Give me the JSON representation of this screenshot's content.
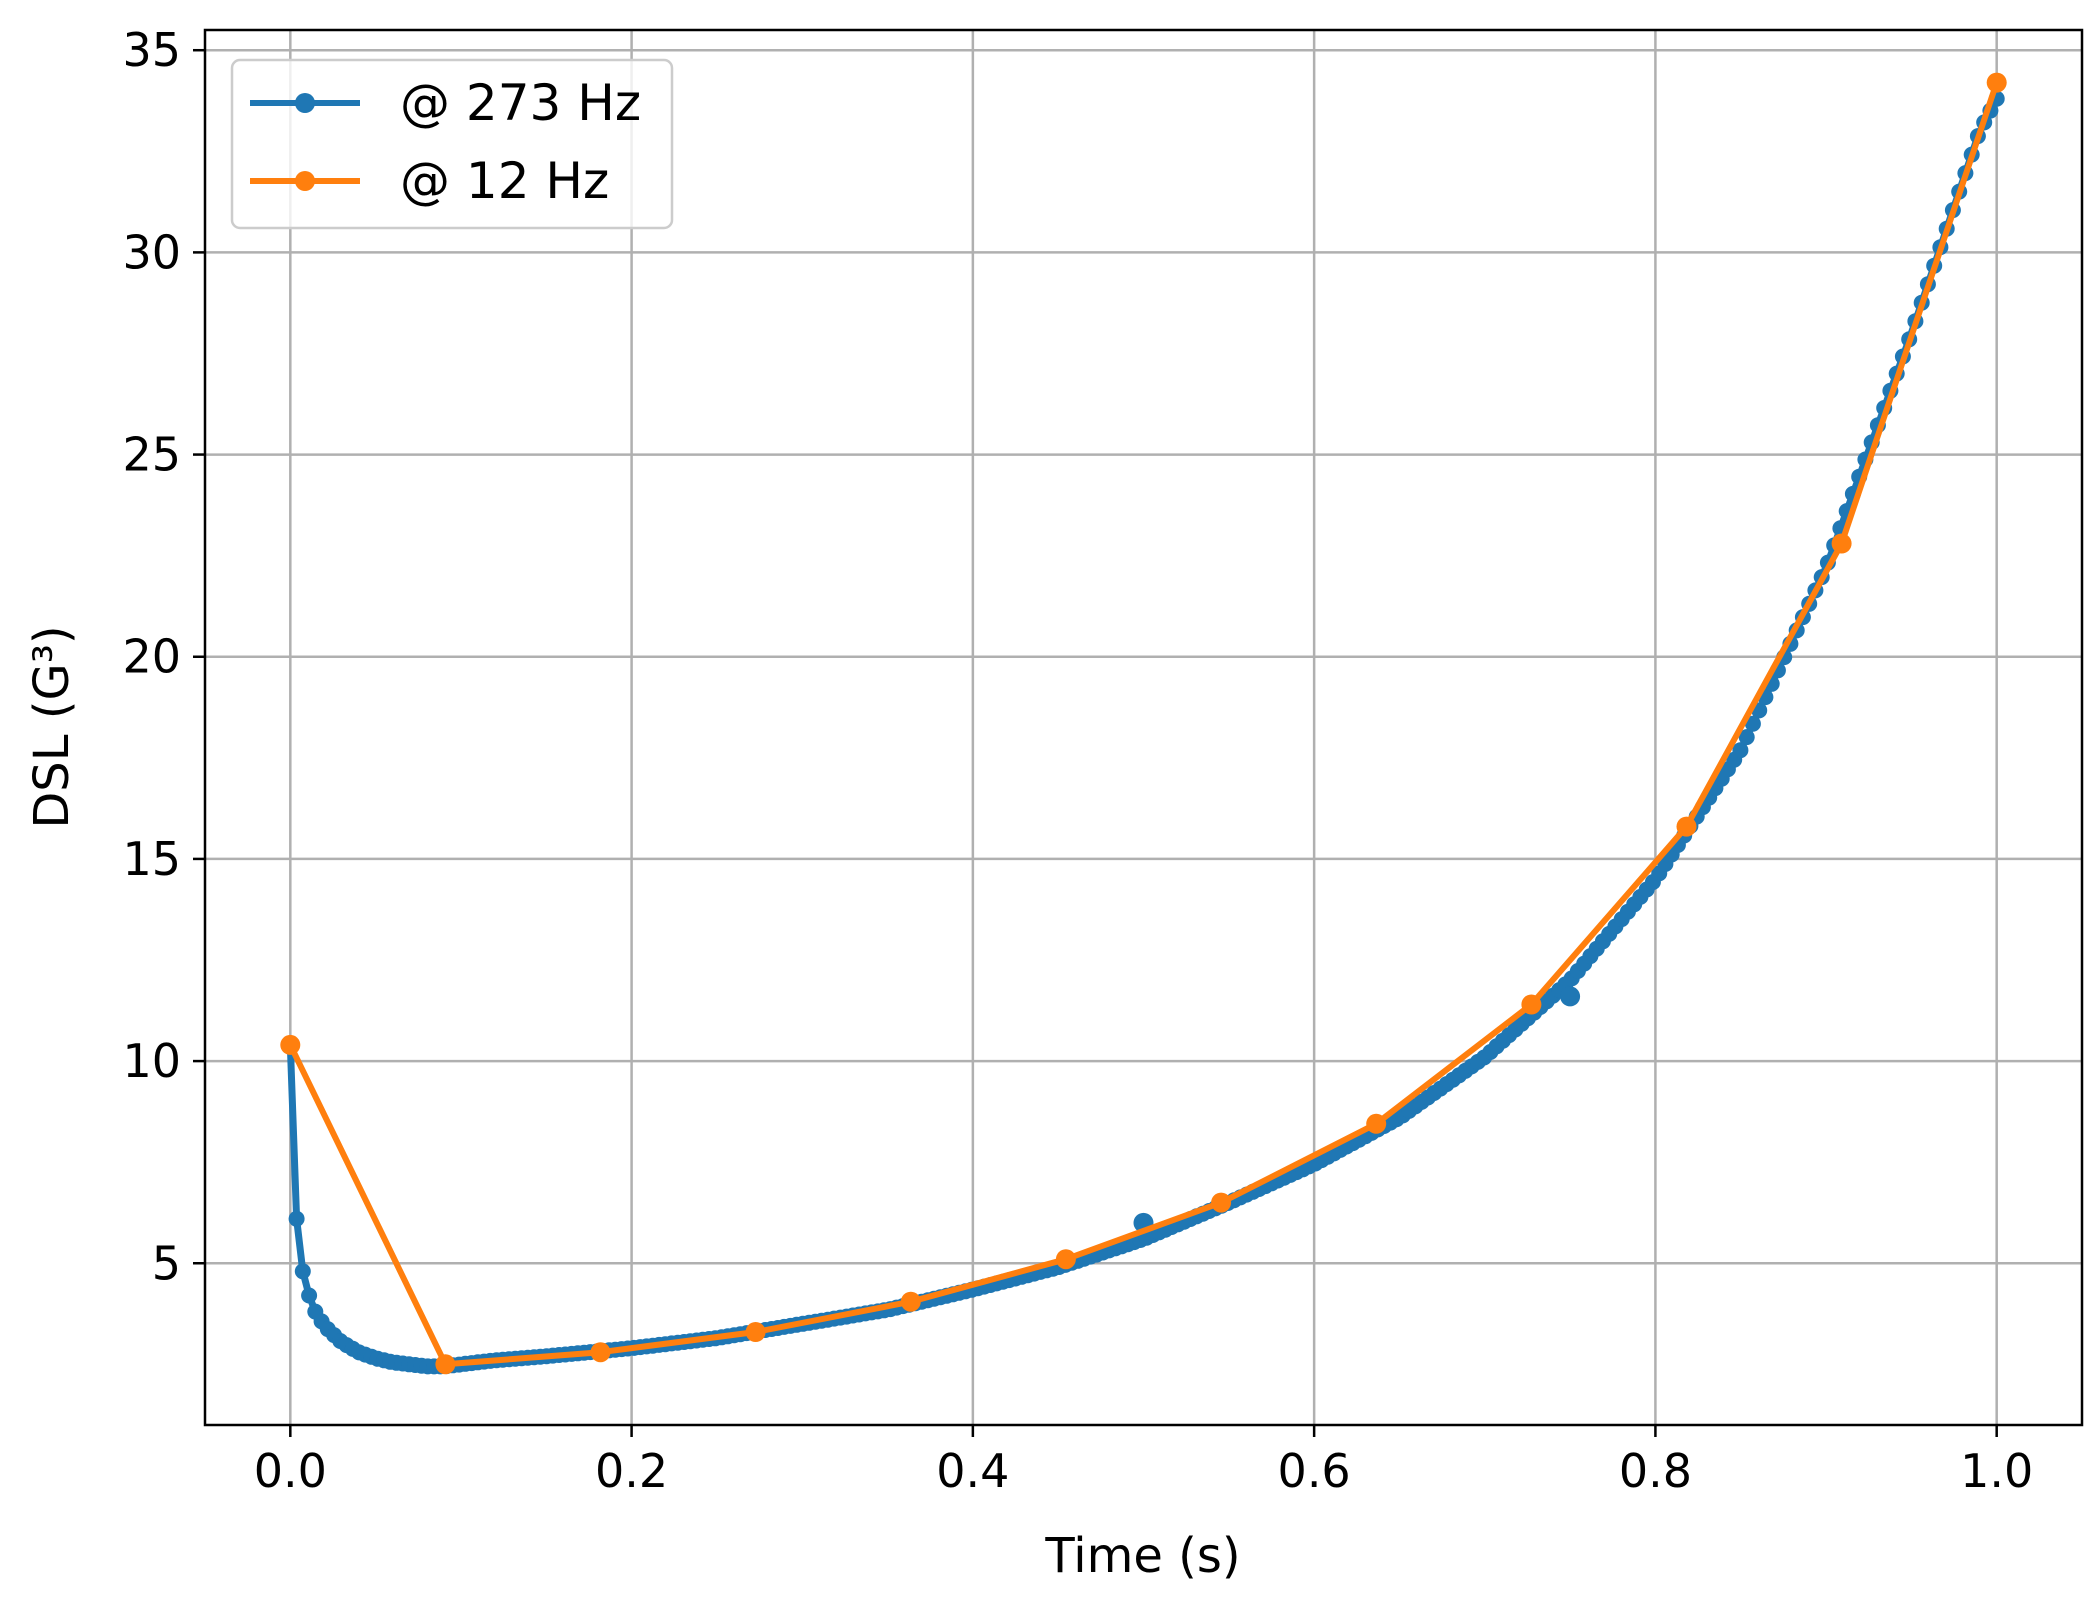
{
  "chart_data": {
    "type": "line",
    "title": "",
    "xlabel": "Time (s)",
    "ylabel": "DSL (G³)",
    "xlim": [
      -0.05,
      1.05
    ],
    "ylim": [
      1.0,
      35.5
    ],
    "xticks": [
      0.0,
      0.2,
      0.4,
      0.6,
      0.8,
      1.0
    ],
    "xtick_labels": [
      "0.0",
      "0.2",
      "0.4",
      "0.6",
      "0.8",
      "1.0"
    ],
    "yticks": [
      5,
      10,
      15,
      20,
      25,
      30,
      35
    ],
    "ytick_labels": [
      "5",
      "10",
      "15",
      "20",
      "25",
      "30",
      "35"
    ],
    "grid": true,
    "legend_position": "top-left",
    "series": [
      {
        "name": "@ 273 Hz",
        "color": "#1f77b4",
        "marker": "circle",
        "sampling_hz": 273,
        "outliers": [
          {
            "x": 0.5,
            "y": 6.0
          },
          {
            "x": 0.75,
            "y": 11.6
          }
        ],
        "x": [
          0.0,
          0.00366,
          0.00733,
          0.011,
          0.0147,
          0.02,
          0.03,
          0.04,
          0.05,
          0.06,
          0.07,
          0.08,
          0.09,
          0.1,
          0.12,
          0.15,
          0.2,
          0.25,
          0.3,
          0.35,
          0.4,
          0.45,
          0.5,
          0.55,
          0.6,
          0.65,
          0.7,
          0.75,
          0.8,
          0.85,
          0.9,
          0.95,
          0.97,
          0.99,
          1.0
        ],
        "y": [
          10.4,
          6.1,
          4.8,
          4.2,
          3.8,
          3.45,
          3.05,
          2.8,
          2.65,
          2.55,
          2.5,
          2.45,
          2.45,
          2.5,
          2.6,
          2.7,
          2.9,
          3.15,
          3.5,
          3.85,
          4.35,
          4.9,
          5.6,
          6.5,
          7.45,
          8.6,
          10.1,
          12.0,
          14.5,
          17.7,
          22.2,
          28.0,
          30.5,
          33.0,
          33.8
        ]
      },
      {
        "name": "@ 12 Hz",
        "color": "#ff7f0e",
        "marker": "circle",
        "sampling_hz": 12,
        "x": [
          0.0,
          0.0909,
          0.1818,
          0.2727,
          0.3636,
          0.4545,
          0.5455,
          0.6364,
          0.7273,
          0.8182,
          0.9091,
          1.0
        ],
        "y": [
          10.4,
          2.5,
          2.8,
          3.3,
          4.05,
          5.1,
          6.5,
          8.45,
          11.4,
          15.8,
          22.8,
          34.2
        ]
      }
    ]
  }
}
